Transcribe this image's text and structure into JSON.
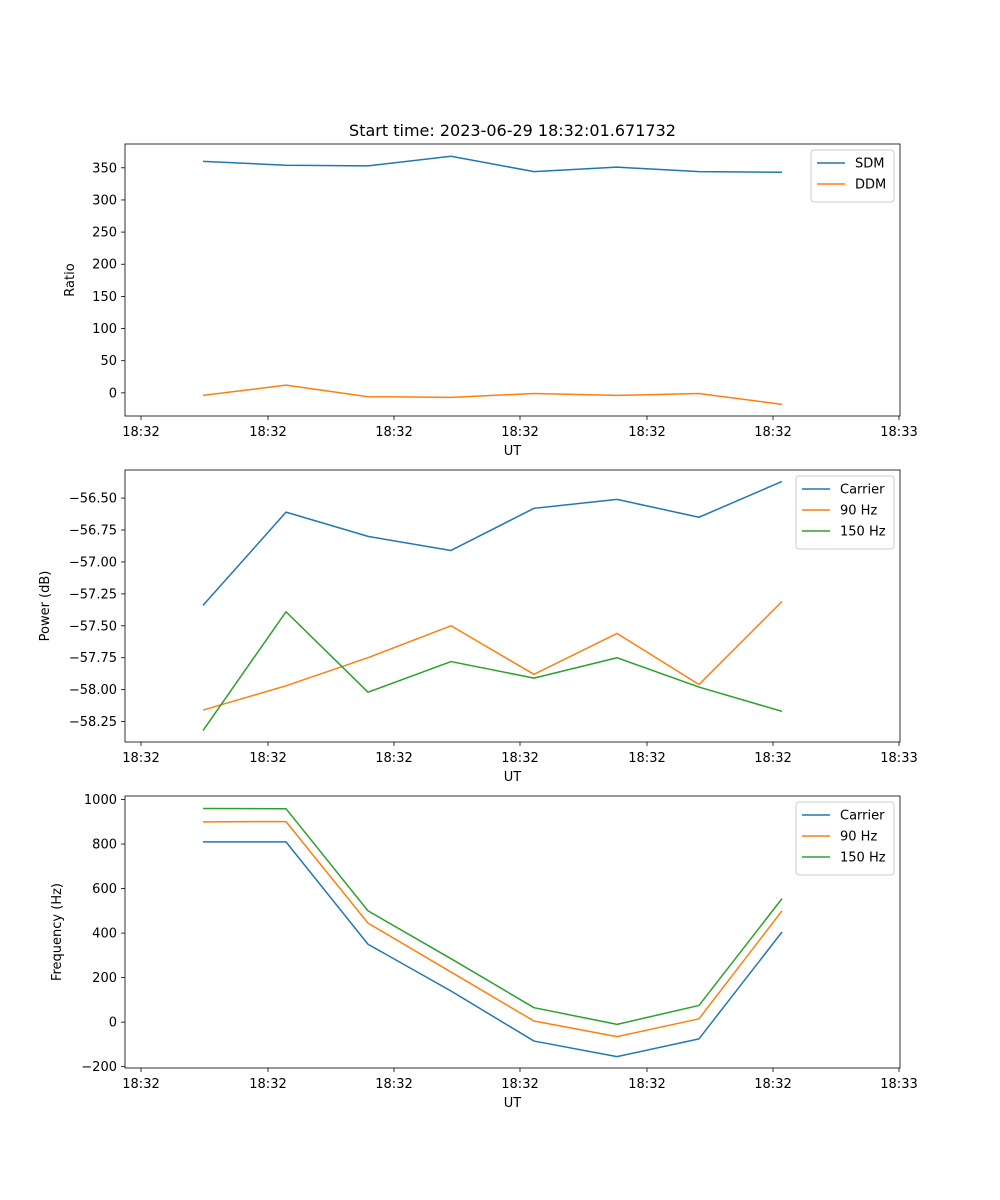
{
  "figure": {
    "title": "Start time: 2023-06-29 18:32:01.671732"
  },
  "chart_data": [
    {
      "type": "line",
      "title": "Start time: 2023-06-29 18:32:01.671732",
      "xlabel": "UT",
      "ylabel": "Ratio",
      "x_tick_labels": [
        "18:32",
        "18:32",
        "18:32",
        "18:32",
        "18:32",
        "18:32",
        "18:33"
      ],
      "y_ticks": [
        0,
        50,
        100,
        150,
        200,
        250,
        300,
        350
      ],
      "ylim": [
        -36,
        387
      ],
      "legend_position": "top-right",
      "grid": false,
      "series": [
        {
          "name": "SDM",
          "color": "#1f77b4",
          "values": [
            360,
            354,
            353,
            368,
            344,
            351,
            344,
            343
          ]
        },
        {
          "name": "DDM",
          "color": "#ff7f0e",
          "values": [
            -4,
            12,
            -6,
            -7,
            -1,
            -4,
            -1,
            -18
          ]
        }
      ]
    },
    {
      "type": "line",
      "title": "",
      "xlabel": "UT",
      "ylabel": "Power (dB)",
      "x_tick_labels": [
        "18:32",
        "18:32",
        "18:32",
        "18:32",
        "18:32",
        "18:32",
        "18:33"
      ],
      "y_ticks": [
        -58.25,
        -58.0,
        -57.75,
        -57.5,
        -57.25,
        -57.0,
        -56.75,
        -56.5
      ],
      "y_tick_labels": [
        "−58.25",
        "−58.00",
        "−57.75",
        "−57.50",
        "−57.25",
        "−57.00",
        "−56.75",
        "−56.50"
      ],
      "ylim": [
        -58.41,
        -56.28
      ],
      "legend_position": "top-right",
      "grid": false,
      "series": [
        {
          "name": "Carrier",
          "color": "#1f77b4",
          "values": [
            -57.34,
            -56.61,
            -56.8,
            -56.91,
            -56.58,
            -56.51,
            -56.65,
            -56.37
          ]
        },
        {
          "name": "90 Hz",
          "color": "#ff7f0e",
          "values": [
            -58.16,
            -57.97,
            -57.75,
            -57.5,
            -57.88,
            -57.56,
            -57.96,
            -57.31
          ]
        },
        {
          "name": "150 Hz",
          "color": "#2ca02c",
          "values": [
            -58.32,
            -57.39,
            -58.02,
            -57.78,
            -57.91,
            -57.75,
            -57.98,
            -58.17
          ]
        }
      ]
    },
    {
      "type": "line",
      "title": "",
      "xlabel": "UT",
      "ylabel": "Frequency (Hz)",
      "x_tick_labels": [
        "18:32",
        "18:32",
        "18:32",
        "18:32",
        "18:32",
        "18:32",
        "18:33"
      ],
      "y_ticks": [
        -200,
        0,
        200,
        400,
        600,
        800,
        1000
      ],
      "y_tick_labels": [
        "−200",
        "0",
        "200",
        "400",
        "600",
        "800",
        "1000"
      ],
      "ylim": [
        -206,
        1016
      ],
      "legend_position": "top-right",
      "grid": false,
      "series": [
        {
          "name": "Carrier",
          "color": "#1f77b4",
          "values": [
            810,
            810,
            350,
            140,
            -85,
            -155,
            -75,
            405
          ]
        },
        {
          "name": "90 Hz",
          "color": "#ff7f0e",
          "values": [
            900,
            901,
            445,
            225,
            5,
            -65,
            15,
            500
          ]
        },
        {
          "name": "150 Hz",
          "color": "#2ca02c",
          "values": [
            960,
            959,
            500,
            285,
            65,
            -10,
            75,
            555
          ]
        }
      ]
    }
  ]
}
